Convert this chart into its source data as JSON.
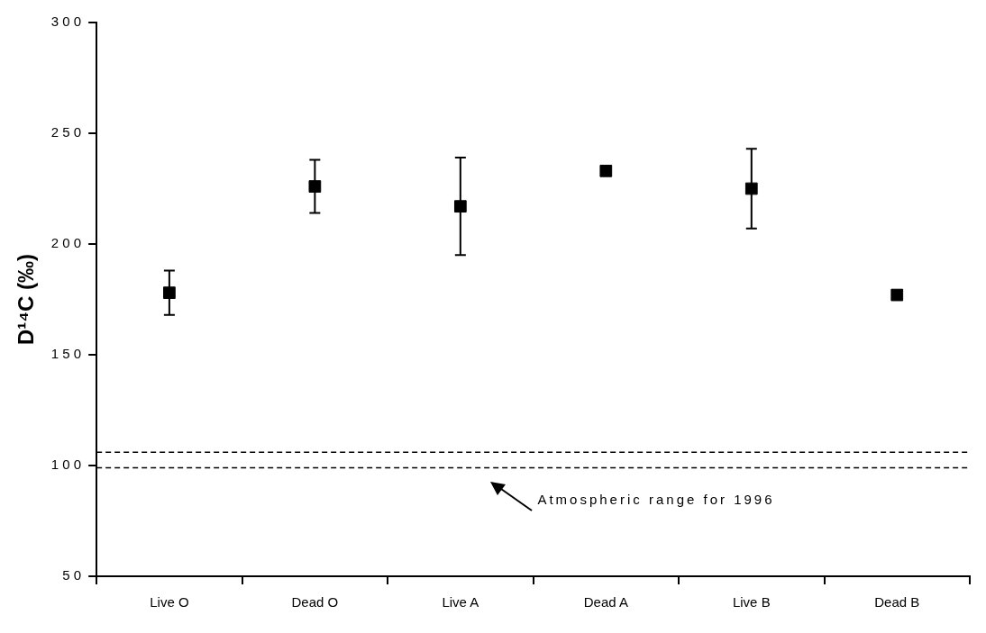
{
  "chart_data": {
    "type": "scatter",
    "ylabel": "D¹⁴C (‰)",
    "categories": [
      "Live O",
      "Dead O",
      "Live A",
      "Dead A",
      "Live B",
      "Dead B"
    ],
    "series": [
      {
        "color": "#000000",
        "values": [
          178,
          226,
          217,
          233,
          225,
          177
        ],
        "errors": [
          10,
          12,
          22,
          null,
          18,
          null
        ]
      }
    ],
    "ylim": [
      50,
      300
    ],
    "yticks": [
      50,
      100,
      150,
      200,
      250,
      300
    ],
    "ref_lines": [
      {
        "axis": "y",
        "value": 99,
        "line_style": "dashed",
        "color": "#000000"
      },
      {
        "axis": "y",
        "value": 106,
        "line_style": "dashed",
        "color": "#000000"
      }
    ],
    "annotations": [
      "Atmospheric range for 1996"
    ],
    "marker": "square",
    "grid": false,
    "legend": false
  }
}
